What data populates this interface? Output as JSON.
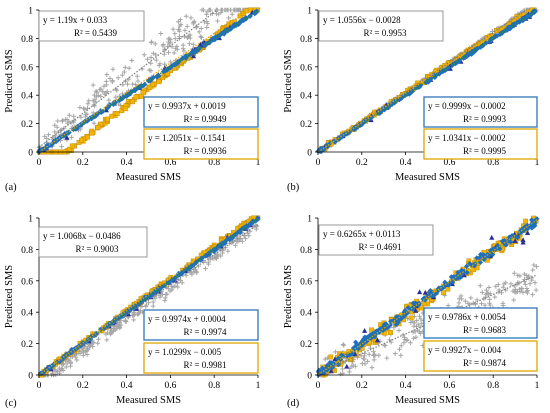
{
  "figure": {
    "colors": {
      "gray": "#a6a6a6",
      "blue": "#1f6fc0",
      "gold": "#f4b400",
      "navy": "#26309a",
      "grayline": "#7f7f7f",
      "blueline": "#2e75b6",
      "greenline": "#2e8b2e",
      "goldline": "#e0a400"
    }
  },
  "chart_data": [
    {
      "panel": "(a)",
      "type": "scatter",
      "xlabel": "Measured SMS",
      "ylabel": "Predicted SMS",
      "xlim": [
        0,
        1
      ],
      "ylim": [
        0,
        1
      ],
      "xticks": [
        "0",
        "0.2",
        "0.4",
        "0.6",
        "0.8",
        "1"
      ],
      "yticks": [
        "0",
        "0.2",
        "0.4",
        "0.6",
        "0.8",
        "1"
      ],
      "grid": false,
      "fits": [
        {
          "line1": "y = 1.19x + 0.033",
          "line2": "R² = 0.5439",
          "box": "gray",
          "slope": 1.19,
          "intercept": 0.033
        },
        {
          "line1": "y = 0.9937x + 0.0019",
          "line2": "R² = 0.9949",
          "box": "blue",
          "slope": 0.9937,
          "intercept": 0.0019
        },
        {
          "line1": "y = 1.2051x − 0.1541",
          "line2": "R² = 0.9936",
          "box": "gold",
          "slope": 1.2051,
          "intercept": -0.1541
        }
      ]
    },
    {
      "panel": "(b)",
      "type": "scatter",
      "xlabel": "Measured SMS",
      "ylabel": "Predicted SMS",
      "xlim": [
        0,
        1
      ],
      "ylim": [
        0,
        1
      ],
      "xticks": [
        "0",
        "0.2",
        "0.4",
        "0.6",
        "0.8",
        "1"
      ],
      "yticks": [
        "0",
        "0.2",
        "0.4",
        "0.6",
        "0.8",
        "1"
      ],
      "grid": false,
      "fits": [
        {
          "line1": "y = 1.0556x − 0.0028",
          "line2": "R² = 0.9953",
          "box": "gray",
          "slope": 1.0556,
          "intercept": -0.0028
        },
        {
          "line1": "y = 0.9999x − 0.0002",
          "line2": "R² = 0.9993",
          "box": "blue",
          "slope": 0.9999,
          "intercept": -0.0002
        },
        {
          "line1": "y = 1.0341x − 0.0002",
          "line2": "R² = 0.9995",
          "box": "gold",
          "slope": 1.0341,
          "intercept": -0.0002
        }
      ]
    },
    {
      "panel": "(c)",
      "type": "scatter",
      "xlabel": "Measured SMS",
      "ylabel": "Predicted SMS",
      "xlim": [
        0,
        1
      ],
      "ylim": [
        0,
        1
      ],
      "xticks": [
        "0",
        "0.2",
        "0.4",
        "0.6",
        "0.8",
        "1"
      ],
      "yticks": [
        "0",
        "0.2",
        "0.4",
        "0.6",
        "0.8",
        "1"
      ],
      "grid": false,
      "fits": [
        {
          "line1": "y = 1.0068x − 0.0486",
          "line2": "R² = 0.9003",
          "box": "gray",
          "slope": 1.0068,
          "intercept": -0.0486
        },
        {
          "line1": "y = 0.9974x + 0.0004",
          "line2": "R² = 0.9974",
          "box": "blue",
          "slope": 0.9974,
          "intercept": 0.0004
        },
        {
          "line1": "y = 1.0299x − 0.005",
          "line2": "R² = 0.9981",
          "box": "gold",
          "slope": 1.0299,
          "intercept": -0.005
        }
      ]
    },
    {
      "panel": "(d)",
      "type": "scatter",
      "xlabel": "Measured SMS",
      "ylabel": "Predicted SMS",
      "xlim": [
        0,
        1
      ],
      "ylim": [
        0,
        1
      ],
      "xticks": [
        "0",
        "0.2",
        "0.4",
        "0.6",
        "0.8",
        "1"
      ],
      "yticks": [
        "0",
        "0.2",
        "0.4",
        "0.6",
        "0.8",
        "1"
      ],
      "grid": false,
      "fits": [
        {
          "line1": "y = 0.6265x + 0.0113",
          "line2": "R² = 0.4691",
          "box": "gray",
          "slope": 0.6265,
          "intercept": 0.0113
        },
        {
          "line1": "y = 0.9786x + 0.0054",
          "line2": "R² = 0.9683",
          "box": "blue",
          "slope": 0.9786,
          "intercept": 0.0054
        },
        {
          "line1": "y = 0.9927x − 0.004",
          "line2": "R² = 0.9874",
          "box": "gold",
          "slope": 0.9927,
          "intercept": -0.004
        }
      ]
    }
  ]
}
